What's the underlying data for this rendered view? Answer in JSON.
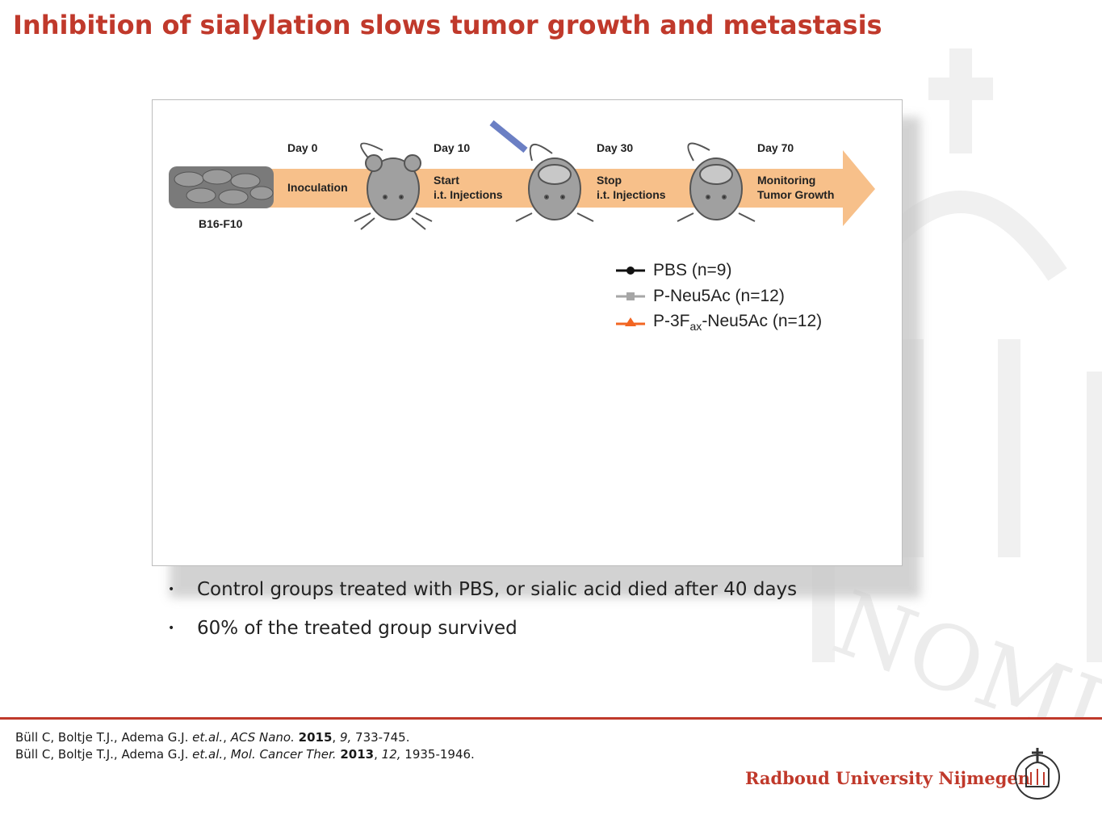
{
  "slide": {
    "title": "Inhibition of sialylation slows tumor growth and metastasis"
  },
  "timeline": {
    "cells_label": "B16-F10",
    "steps": [
      {
        "day": "Day 0",
        "line1": "Inoculation",
        "line2": ""
      },
      {
        "day": "Day 10",
        "line1": "Start",
        "line2": "i.t. Injections"
      },
      {
        "day": "Day 30",
        "line1": "Stop",
        "line2": "i.t. Injections"
      },
      {
        "day": "Day 70",
        "line1": "Monitoring",
        "line2": "Tumor Growth"
      }
    ]
  },
  "legend": {
    "items": [
      {
        "label": "PBS (n=9)",
        "color": "#111111",
        "marker": "circle"
      },
      {
        "label": "P-Neu5Ac (n=12)",
        "color": "#a6a6a6",
        "marker": "square"
      },
      {
        "label_pre": "P-3F",
        "label_sub": "ax",
        "label_post": "-Neu5Ac (n=12)",
        "color": "#f26522",
        "marker": "triangle"
      }
    ]
  },
  "bullets": [
    "Control groups treated with PBS, or sialic acid died after 40 days",
    "60% of the treated group survived"
  ],
  "references": [
    {
      "authors": "Büll C, Boltje T.J., Adema G.J. ",
      "etal": "et.al.",
      "sep": ", ",
      "journal": "ACS Nano.",
      "space": " ",
      "year": "2015",
      "comma": ", ",
      "volume": "9,",
      "pages": " 733-745."
    },
    {
      "authors": "Büll C, Boltje T.J., Adema G.J. ",
      "etal": "et.al.",
      "sep": ", ",
      "journal": "Mol. Cancer Ther.",
      "space": " ",
      "year": "2013",
      "comma": ", ",
      "volume": "12,",
      "pages": " 1935-1946."
    }
  ],
  "footer": {
    "brand": "Radboud University Nijmegen",
    "watermark_text": "NOMINE·F"
  },
  "colors": {
    "accent": "#c0392b",
    "arrow": "#f7c08a"
  }
}
